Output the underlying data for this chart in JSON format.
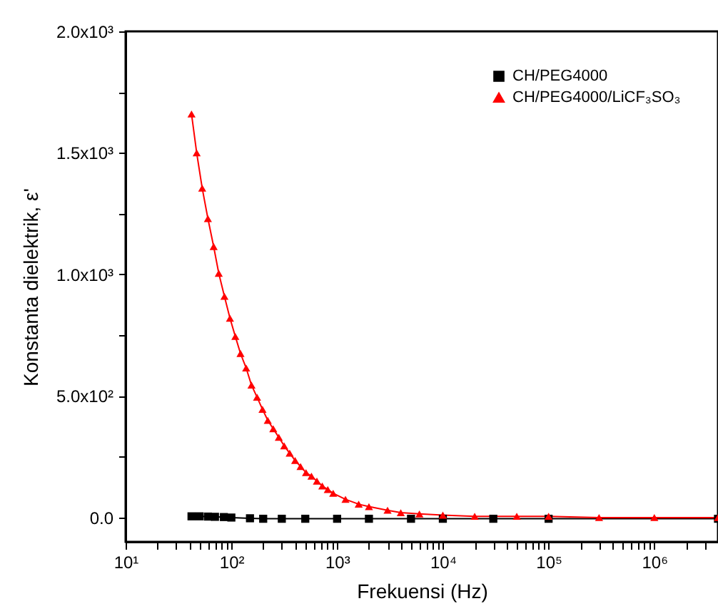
{
  "chart_data": {
    "type": "line",
    "xlabel": "Frekuensi (Hz)",
    "ylabel": "Konstanta dielektrik, ε'",
    "log": "x",
    "grid": false,
    "legend": "top right",
    "line_style": "solid",
    "xlim": [
      10,
      4000000
    ],
    "ylim": [
      -100,
      2000
    ],
    "xticks": [
      {
        "value": 10,
        "label": "10¹"
      },
      {
        "value": 20,
        "label": null
      },
      {
        "value": 30,
        "label": null
      },
      {
        "value": 40,
        "label": null
      },
      {
        "value": 50,
        "label": null
      },
      {
        "value": 60,
        "label": null
      },
      {
        "value": 70,
        "label": null
      },
      {
        "value": 80,
        "label": null
      },
      {
        "value": 90,
        "label": null
      },
      {
        "value": 100,
        "label": "10²"
      },
      {
        "value": 200,
        "label": null
      },
      {
        "value": 300,
        "label": null
      },
      {
        "value": 400,
        "label": null
      },
      {
        "value": 500,
        "label": null
      },
      {
        "value": 600,
        "label": null
      },
      {
        "value": 700,
        "label": null
      },
      {
        "value": 800,
        "label": null
      },
      {
        "value": 900,
        "label": null
      },
      {
        "value": 1000,
        "label": "10³"
      },
      {
        "value": 2000,
        "label": null
      },
      {
        "value": 3000,
        "label": null
      },
      {
        "value": 4000,
        "label": null
      },
      {
        "value": 5000,
        "label": null
      },
      {
        "value": 6000,
        "label": null
      },
      {
        "value": 7000,
        "label": null
      },
      {
        "value": 8000,
        "label": null
      },
      {
        "value": 9000,
        "label": null
      },
      {
        "value": 10000,
        "label": "10⁴"
      },
      {
        "value": 20000,
        "label": null
      },
      {
        "value": 30000,
        "label": null
      },
      {
        "value": 40000,
        "label": null
      },
      {
        "value": 50000,
        "label": null
      },
      {
        "value": 60000,
        "label": null
      },
      {
        "value": 70000,
        "label": null
      },
      {
        "value": 80000,
        "label": null
      },
      {
        "value": 90000,
        "label": null
      },
      {
        "value": 100000,
        "label": "10⁵"
      },
      {
        "value": 200000,
        "label": null
      },
      {
        "value": 300000,
        "label": null
      },
      {
        "value": 400000,
        "label": null
      },
      {
        "value": 500000,
        "label": null
      },
      {
        "value": 600000,
        "label": null
      },
      {
        "value": 700000,
        "label": null
      },
      {
        "value": 800000,
        "label": null
      },
      {
        "value": 900000,
        "label": null
      },
      {
        "value": 1000000,
        "label": "10⁶"
      },
      {
        "value": 2000000,
        "label": null
      },
      {
        "value": 3000000,
        "label": null
      }
    ],
    "yticks": [
      {
        "value": 0,
        "label": "0.0"
      },
      {
        "value": 250,
        "label": null
      },
      {
        "value": 500,
        "label": "5.0x10²"
      },
      {
        "value": 750,
        "label": null
      },
      {
        "value": 1000,
        "label": "1.0x10³"
      },
      {
        "value": 1250,
        "label": null
      },
      {
        "value": 1500,
        "label": "1.5x10³"
      },
      {
        "value": 1750,
        "label": null
      },
      {
        "value": 2000,
        "label": "2.0x10³"
      }
    ],
    "series": [
      {
        "name": "CH/PEG4000",
        "color": "#000000",
        "marker": "square",
        "x": [
          42,
          50,
          60,
          70,
          85,
          100,
          150,
          200,
          300,
          500,
          1000,
          2000,
          5000,
          10000,
          30000,
          100000,
          4000000
        ],
        "values": [
          5,
          5,
          4,
          3,
          2,
          0,
          -3,
          -5,
          -5,
          -5,
          -5,
          -5,
          -5,
          -5,
          -5,
          -5,
          -5
        ]
      },
      {
        "name": "CH/PEG4000/LiCF₃SO₃",
        "color": "#ff0000",
        "marker": "triangle",
        "x": [
          42,
          47,
          53,
          60,
          68,
          76,
          86,
          97,
          109,
          122,
          138,
          155,
          175,
          197,
          221,
          249,
          281,
          316,
          356,
          401,
          451,
          508,
          572,
          644,
          724,
          816,
          918,
          1200,
          1600,
          2000,
          3000,
          4000,
          6000,
          10000,
          20000,
          50000,
          100000,
          300000,
          1000000,
          4000000
        ],
        "values": [
          1660,
          1500,
          1355,
          1230,
          1115,
          1005,
          910,
          820,
          745,
          675,
          615,
          545,
          495,
          445,
          400,
          365,
          330,
          295,
          265,
          235,
          210,
          185,
          170,
          150,
          130,
          115,
          100,
          75,
          55,
          45,
          30,
          20,
          15,
          10,
          5,
          5,
          5,
          0,
          0,
          0
        ]
      }
    ]
  }
}
